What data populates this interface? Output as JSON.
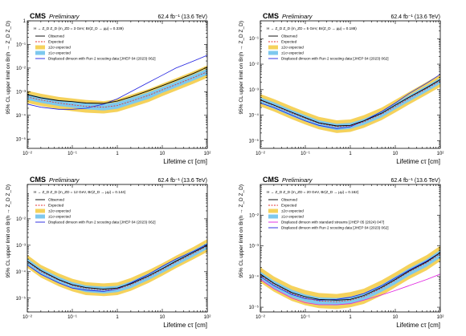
{
  "chart_data": [
    {
      "type": "line",
      "cms_label": "CMS",
      "preliminary_label": "Preliminary",
      "lumi_label": "62.4 fb⁻¹ (13.6 TeV)",
      "process_label": "H → Z_D Z_D (m_ZD = 3 GeV, Br(Z_D → μμ) = 0.339)",
      "xlabel": "Lifetime cτ [cm]",
      "ylabel": "95% CL upper limit on Br(h → Z_D Z_D)",
      "xscale": "log",
      "yscale": "log",
      "xlim": [
        0.01,
        100
      ],
      "ylim": [
        4e-06,
        1
      ],
      "xticks": [
        0.01,
        0.1,
        1,
        10,
        100
      ],
      "xtick_labels": [
        "10⁻²",
        "10⁻¹",
        "1",
        "10",
        "10²"
      ],
      "yticks": [
        1e-05,
        0.0001,
        0.001,
        0.01,
        0.1,
        1
      ],
      "ytick_labels": [
        "10⁻⁵",
        "10⁻⁴",
        "10⁻³",
        "10⁻²",
        "10⁻¹",
        "1"
      ],
      "legend_position": "top-left",
      "legend": [
        "Observed",
        "Expected",
        "±2σ expected",
        "±1σ expected",
        "Displaced dimuon with Run 2 scouting data [JHEP 04 (2023) 062]"
      ],
      "colors": {
        "observed": "#000000",
        "expected": "#e03030",
        "band2": "#f5d25c",
        "band1": "#7ec8ee",
        "run2": "#2020e0",
        "standard": "#e020e0"
      },
      "x": [
        0.01,
        0.02,
        0.05,
        0.1,
        0.2,
        0.5,
        1,
        2,
        5,
        10,
        20,
        50,
        100
      ],
      "series": [
        {
          "key": "observed",
          "values": [
            0.00075,
            0.00055,
            0.00042,
            0.00038,
            0.00033,
            0.00032,
            0.0004,
            0.0006,
            0.0011,
            0.0018,
            0.003,
            0.006,
            0.011
          ]
        },
        {
          "key": "expected",
          "values": [
            0.0006,
            0.00045,
            0.00033,
            0.00028,
            0.00024,
            0.00022,
            0.00026,
            0.0004,
            0.0007,
            0.0012,
            0.002,
            0.004,
            0.007
          ]
        },
        {
          "key": "run2",
          "values": [
            0.0003,
            0.00022,
            0.00018,
            0.00018,
            0.0002,
            0.0003,
            0.0005,
            0.001,
            0.0025,
            0.005,
            0.01,
            0.02,
            0.035
          ]
        }
      ],
      "band1": {
        "low": [
          0.00045,
          0.00034,
          0.00025,
          0.00021,
          0.00018,
          0.00016,
          0.00019,
          0.00029,
          0.0005,
          0.0009,
          0.0015,
          0.003,
          0.0052
        ],
        "high": [
          0.0008,
          0.0006,
          0.00044,
          0.00038,
          0.00032,
          0.0003,
          0.00036,
          0.00055,
          0.00095,
          0.0016,
          0.0027,
          0.0054,
          0.0095
        ]
      },
      "band2": {
        "low": [
          0.00033,
          0.00025,
          0.00018,
          0.00015,
          0.00013,
          0.00012,
          0.00014,
          0.00021,
          0.00037,
          0.00065,
          0.0011,
          0.0022,
          0.0039
        ],
        "high": [
          0.0011,
          0.00082,
          0.0006,
          0.00052,
          0.00045,
          0.0004,
          0.00048,
          0.00075,
          0.0013,
          0.0022,
          0.0037,
          0.0074,
          0.013
        ]
      }
    },
    {
      "type": "line",
      "cms_label": "CMS",
      "preliminary_label": "Preliminary",
      "lumi_label": "62.4 fb⁻¹ (13.6 TeV)",
      "process_label": "H → Z_D Z_D (m_ZD = 5 GeV, Br(Z_D → μμ) = 0.188)",
      "xlabel": "Lifetime cτ [cm]",
      "ylabel": "95% CL upper limit on Br(h → Z_D Z_D)",
      "xscale": "log",
      "yscale": "log",
      "xlim": [
        0.01,
        100
      ],
      "ylim": [
        5e-06,
        0.5
      ],
      "xticks": [
        0.01,
        0.1,
        1,
        10,
        100
      ],
      "xtick_labels": [
        "10⁻²",
        "10⁻¹",
        "1",
        "10",
        "10²"
      ],
      "yticks": [
        1e-05,
        0.0001,
        0.001,
        0.01,
        0.1
      ],
      "ytick_labels": [
        "10⁻⁵",
        "10⁻⁴",
        "10⁻³",
        "10⁻²",
        "10⁻¹"
      ],
      "legend_position": "top-left",
      "legend": [
        "Observed",
        "Expected",
        "±2σ expected",
        "±1σ expected",
        "Displaced dimuon with Run 2 scouting data [JHEP 04 (2023) 062]"
      ],
      "colors": {
        "observed": "#000000",
        "expected": "#e03030",
        "band2": "#f5d25c",
        "band1": "#7ec8ee",
        "run2": "#2020e0",
        "standard": "#e020e0"
      },
      "x": [
        0.01,
        0.02,
        0.05,
        0.1,
        0.2,
        0.5,
        1,
        2,
        5,
        10,
        20,
        50,
        100
      ],
      "series": [
        {
          "key": "observed",
          "values": [
            0.0004,
            0.00025,
            0.00013,
            8e-05,
            5e-05,
            3.8e-05,
            4e-05,
            6e-05,
            0.00012,
            0.00025,
            0.0005,
            0.0012,
            0.0025
          ]
        },
        {
          "key": "expected",
          "values": [
            0.00038,
            0.00024,
            0.00012,
            7.5e-05,
            4.8e-05,
            3.5e-05,
            3.8e-05,
            5.5e-05,
            0.00011,
            0.00022,
            0.00045,
            0.0011,
            0.0022
          ]
        },
        {
          "key": "run2",
          "values": [
            0.0003,
            0.0002,
            0.0001,
            6e-05,
            4e-05,
            3e-05,
            3.5e-05,
            6e-05,
            0.00014,
            0.0003,
            0.0007,
            0.0018,
            0.004
          ]
        }
      ],
      "band1": {
        "low": [
          0.00029,
          0.00018,
          9e-05,
          5.7e-05,
          3.6e-05,
          2.6e-05,
          2.9e-05,
          4.2e-05,
          8.3e-05,
          0.00017,
          0.00034,
          0.00083,
          0.0017
        ],
        "high": [
          0.0005,
          0.00032,
          0.00016,
          0.0001,
          6.3e-05,
          4.6e-05,
          5e-05,
          7.2e-05,
          0.000145,
          0.00029,
          0.0006,
          0.00145,
          0.0029
        ]
      },
      "band2": {
        "low": [
          0.00022,
          0.00014,
          7e-05,
          4.3e-05,
          2.8e-05,
          2e-05,
          2.2e-05,
          3.2e-05,
          6.4e-05,
          0.000128,
          0.00026,
          0.00064,
          0.00128
        ],
        "high": [
          0.00068,
          0.00043,
          0.00022,
          0.000135,
          8.6e-05,
          6.3e-05,
          6.8e-05,
          0.0001,
          0.0002,
          0.0004,
          0.00081,
          0.002,
          0.004
        ]
      }
    },
    {
      "type": "line",
      "cms_label": "CMS",
      "preliminary_label": "Preliminary",
      "lumi_label": "62.4 fb⁻¹ (13.6 TeV)",
      "process_label": "H → Z_D Z_D (m_ZD = 12 GeV, Br(Z_D → μμ) = 0.144)",
      "xlabel": "Lifetime cτ [cm]",
      "ylabel": "95% CL upper limit on Br(h → Z_D Z_D)",
      "xscale": "log",
      "yscale": "log",
      "xlim": [
        0.01,
        100
      ],
      "ylim": [
        3e-06,
        0.2
      ],
      "xticks": [
        0.01,
        0.1,
        1,
        10,
        100
      ],
      "xtick_labels": [
        "10⁻²",
        "10⁻¹",
        "1",
        "10",
        "10²"
      ],
      "yticks": [
        1e-05,
        0.0001,
        0.001,
        0.01
      ],
      "ytick_labels": [
        "10⁻⁵",
        "10⁻⁴",
        "10⁻³",
        "10⁻²"
      ],
      "legend_position": "top-left",
      "legend": [
        "Observed",
        "Expected",
        "±2σ expected",
        "±1σ expected",
        "Displaced dimuon with Run 2 scouting data [JHEP 04 (2023) 062]"
      ],
      "colors": {
        "observed": "#000000",
        "expected": "#e03030",
        "band2": "#f5d25c",
        "band1": "#7ec8ee",
        "run2": "#2020e0",
        "standard": "#e020e0"
      },
      "x": [
        0.01,
        0.02,
        0.05,
        0.1,
        0.2,
        0.5,
        1,
        2,
        5,
        10,
        20,
        50,
        100
      ],
      "series": [
        {
          "key": "observed",
          "values": [
            0.00025,
            0.00011,
            5e-05,
            3.2e-05,
            2.5e-05,
            2.2e-05,
            2.4e-05,
            3.5e-05,
            7e-05,
            0.00013,
            0.00025,
            0.00055,
            0.001
          ]
        },
        {
          "key": "expected",
          "values": [
            0.00024,
            0.0001,
            4.8e-05,
            3e-05,
            2.3e-05,
            2e-05,
            2.2e-05,
            3.2e-05,
            6.5e-05,
            0.00012,
            0.00023,
            0.0005,
            0.00095
          ]
        },
        {
          "key": "run2",
          "values": [
            0.00018,
            8e-05,
            3.8e-05,
            2.4e-05,
            2e-05,
            1.8e-05,
            2.2e-05,
            3.8e-05,
            8e-05,
            0.00016,
            0.0003,
            0.0006,
            0.0011
          ]
        }
      ],
      "band1": {
        "low": [
          0.00018,
          7.6e-05,
          3.6e-05,
          2.3e-05,
          1.7e-05,
          1.5e-05,
          1.7e-05,
          2.4e-05,
          4.9e-05,
          9e-05,
          0.00017,
          0.00038,
          0.00072
        ],
        "high": [
          0.00032,
          0.000135,
          6.4e-05,
          4e-05,
          3e-05,
          2.7e-05,
          2.9e-05,
          4.3e-05,
          8.6e-05,
          0.00016,
          0.0003,
          0.00066,
          0.00125
        ]
      },
      "band2": {
        "low": [
          0.00014,
          6e-05,
          2.8e-05,
          1.8e-05,
          1.3e-05,
          1.2e-05,
          1.3e-05,
          1.9e-05,
          3.8e-05,
          7e-05,
          0.000135,
          0.0003,
          0.00056
        ],
        "high": [
          0.00043,
          0.00018,
          8.6e-05,
          5.4e-05,
          4e-05,
          3.6e-05,
          3.9e-05,
          5.8e-05,
          0.000115,
          0.00021,
          0.0004,
          0.00088,
          0.0017
        ]
      }
    },
    {
      "type": "line",
      "cms_label": "CMS",
      "preliminary_label": "Preliminary",
      "lumi_label": "62.4 fb⁻¹ (13.6 TeV)",
      "process_label": "H → Z_D Z_D (m_ZD = 20 GeV, Br(Z_D → μμ) = 0.162)",
      "xlabel": "Lifetime cτ [cm]",
      "ylabel": "95% CL upper limit on Br(h → Z_D Z_D)",
      "xscale": "log",
      "yscale": "log",
      "xlim": [
        0.01,
        100
      ],
      "ylim": [
        7e-06,
        0.1
      ],
      "xticks": [
        0.01,
        0.1,
        1,
        10,
        100
      ],
      "xtick_labels": [
        "10⁻²",
        "10⁻¹",
        "1",
        "10",
        "10²"
      ],
      "yticks": [
        1e-05,
        0.0001,
        0.001,
        0.01
      ],
      "ytick_labels": [
        "10⁻⁵",
        "10⁻⁴",
        "10⁻³",
        "10⁻²"
      ],
      "legend_position": "top-left",
      "legend": [
        "Observed",
        "Expected",
        "±2σ expected",
        "±1σ expected",
        "Displaced dimuon with standard streams [JHEP 05 (2024) 047]",
        "Displaced dimuon with Run 2 scouting data [JHEP 04 (2023) 062]"
      ],
      "colors": {
        "observed": "#000000",
        "expected": "#e03030",
        "band2": "#f5d25c",
        "band1": "#7ec8ee",
        "run2": "#2020e0",
        "standard": "#e020e0"
      },
      "x": [
        0.01,
        0.02,
        0.05,
        0.1,
        0.2,
        0.5,
        1,
        2,
        5,
        10,
        20,
        50,
        100
      ],
      "series": [
        {
          "key": "observed",
          "values": [
            0.00012,
            6e-05,
            3e-05,
            2.2e-05,
            1.8e-05,
            1.7e-05,
            1.8e-05,
            2.4e-05,
            4.5e-05,
            8e-05,
            0.00015,
            0.0003,
            0.0006
          ]
        },
        {
          "key": "expected",
          "values": [
            0.00011,
            5.5e-05,
            2.8e-05,
            2e-05,
            1.6e-05,
            1.5e-05,
            1.7e-05,
            2.2e-05,
            4.2e-05,
            7.5e-05,
            0.00014,
            0.00028,
            0.00055
          ]
        },
        {
          "key": "standard",
          "values": [
            8e-05,
            4e-05,
            2e-05,
            1.4e-05,
            1.2e-05,
            1.2e-05,
            1.3e-05,
            1.7e-05,
            2.5e-05,
            3.5e-05,
            5e-05,
            8e-05,
            0.00012
          ]
        },
        {
          "key": "run2",
          "values": [
            0.0001,
            5e-05,
            2.6e-05,
            1.9e-05,
            1.7e-05,
            1.8e-05,
            2.1e-05,
            2.8e-05,
            5e-05,
            9e-05,
            0.00016,
            0.00032,
            0.0006
          ]
        }
      ],
      "band1": {
        "low": [
          8.3e-05,
          4.1e-05,
          2.1e-05,
          1.5e-05,
          1.2e-05,
          1.15e-05,
          1.3e-05,
          1.65e-05,
          3.2e-05,
          5.6e-05,
          0.000105,
          0.00021,
          0.00041
        ],
        "high": [
          0.000145,
          7.3e-05,
          3.7e-05,
          2.6e-05,
          2.1e-05,
          2e-05,
          2.2e-05,
          2.9e-05,
          5.5e-05,
          0.0001,
          0.000185,
          0.00037,
          0.00073
        ]
      },
      "band2": {
        "low": [
          6.4e-05,
          3.2e-05,
          1.6e-05,
          1.15e-05,
          9.3e-06,
          8.7e-06,
          9.9e-06,
          1.28e-05,
          2.4e-05,
          4.4e-05,
          8.1e-05,
          0.00016,
          0.00032
        ],
        "high": [
          0.0002,
          0.0001,
          5e-05,
          3.6e-05,
          2.9e-05,
          2.7e-05,
          3.1e-05,
          4e-05,
          7.6e-05,
          0.000135,
          0.00025,
          0.0005,
          0.001
        ]
      }
    }
  ]
}
